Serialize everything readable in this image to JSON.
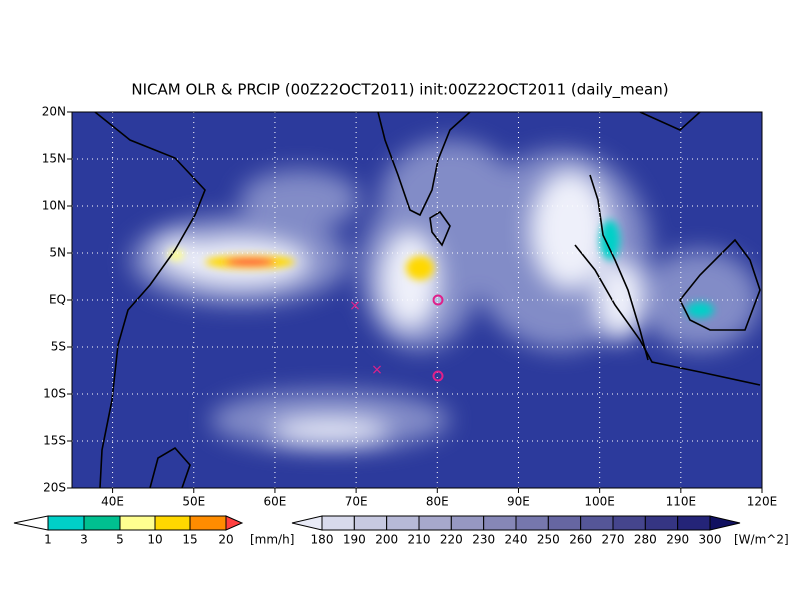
{
  "title": "NICAM OLR & PRCIP (00Z22OCT2011) init:00Z22OCT2011 (daily_mean)",
  "lat_labels": [
    "20N",
    "15N",
    "10N",
    "5N",
    "EQ",
    "5S",
    "10S",
    "15S",
    "20S"
  ],
  "lon_labels": [
    "40E",
    "50E",
    "60E",
    "70E",
    "80E",
    "90E",
    "100E",
    "110E",
    "120E"
  ],
  "precip_colorbar": {
    "labels": [
      "1",
      "3",
      "5",
      "10",
      "15",
      "20"
    ],
    "unit": "[mm/h]"
  },
  "olr_colorbar": {
    "labels": [
      "180",
      "190",
      "200",
      "210",
      "220",
      "230",
      "240",
      "250",
      "260",
      "270",
      "280",
      "290",
      "300"
    ],
    "unit": "[W/m^2]"
  }
}
